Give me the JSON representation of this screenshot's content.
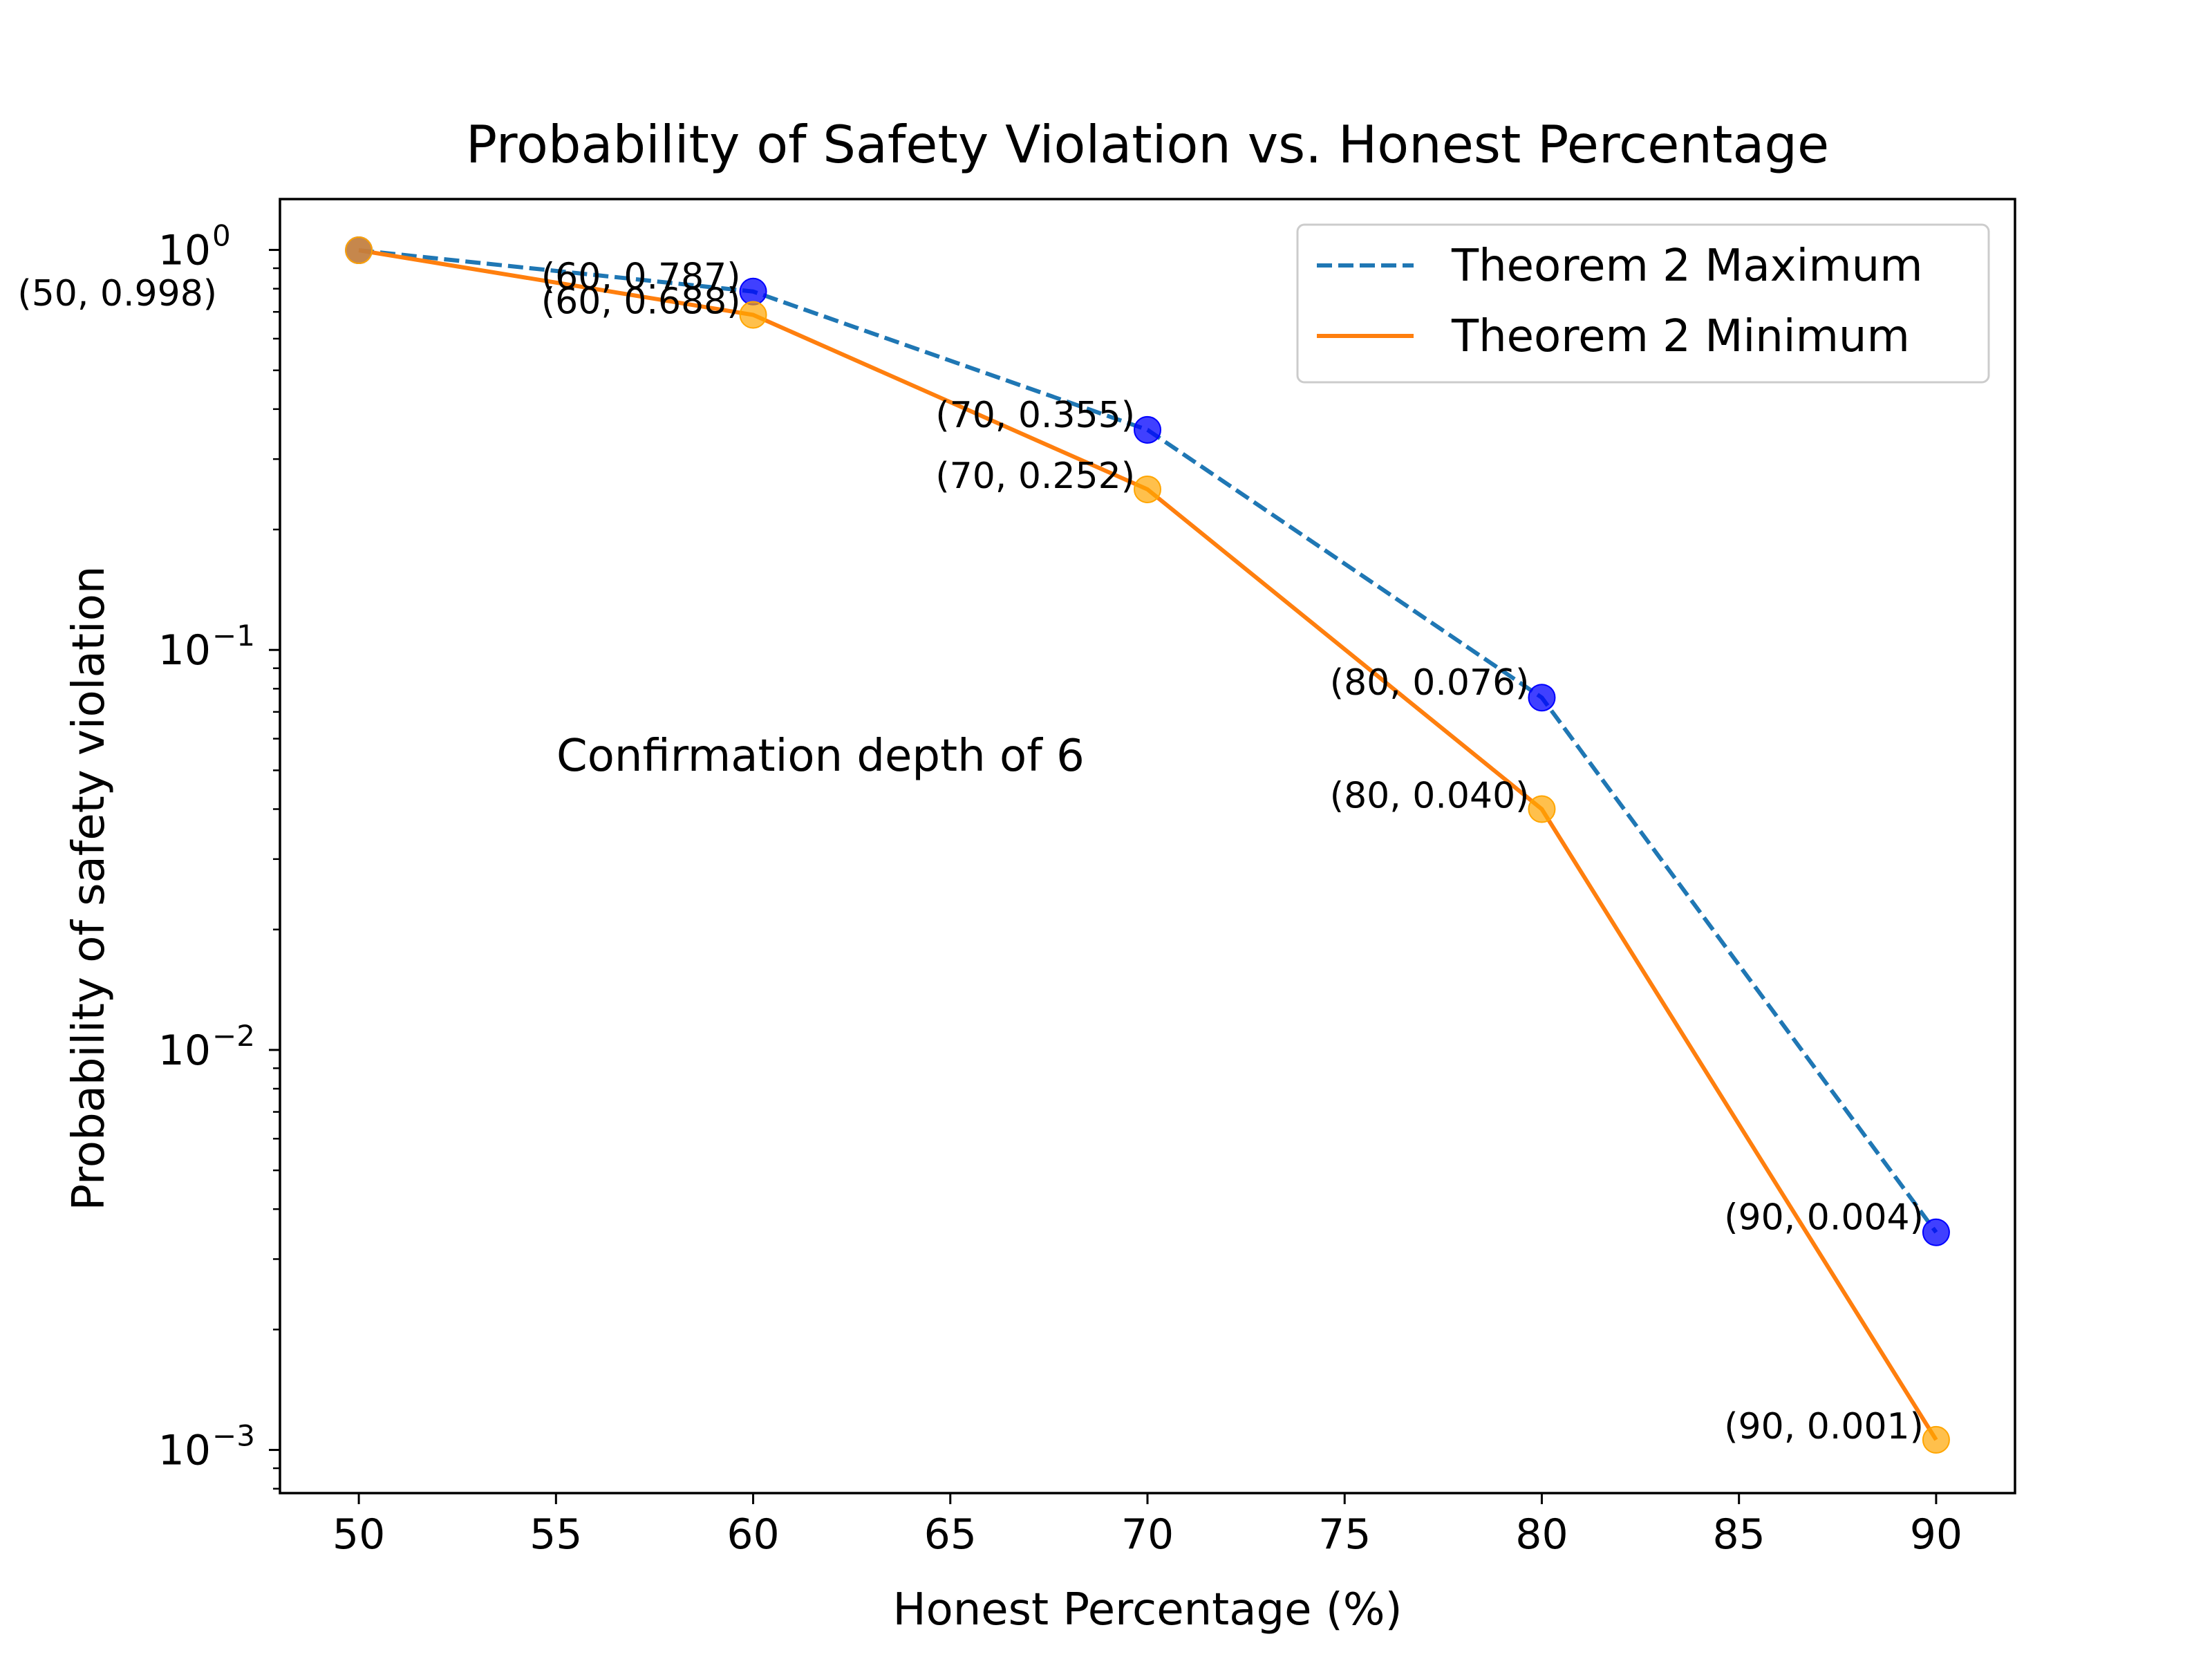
{
  "chart_data": {
    "type": "line",
    "title": "Probability of Safety Violation vs. Honest Percentage",
    "xlabel": "Honest Percentage (%)",
    "ylabel": "Probability of safety violation",
    "xlim": [
      48,
      92
    ],
    "ylim": [
      0.00078,
      1.34
    ],
    "yscale": "log",
    "grid": false,
    "legend_position": "top-right",
    "x": [
      50,
      60,
      70,
      80,
      90
    ],
    "xticks": [
      50,
      55,
      60,
      65,
      70,
      75,
      80,
      85,
      90
    ],
    "yticks": [
      {
        "value": 1,
        "base": "10",
        "exp": "0"
      },
      {
        "value": 0.1,
        "base": "10",
        "exp": "−1"
      },
      {
        "value": 0.01,
        "base": "10",
        "exp": "−2"
      },
      {
        "value": 0.001,
        "base": "10",
        "exp": "−3"
      }
    ],
    "series": [
      {
        "name": "Theorem 2 Maximum",
        "line_style": "dashed",
        "line_color": "#1f77b4",
        "marker_color": "#0000ff",
        "values": [
          0.998,
          0.787,
          0.355,
          0.076,
          0.0035
        ],
        "point_labels": [
          "",
          "(60, 0.787)",
          "(70, 0.355)",
          "(80, 0.076)",
          "(90, 0.004)"
        ]
      },
      {
        "name": "Theorem 2 Minimum",
        "line_style": "solid",
        "line_color": "#ff7f0e",
        "marker_color": "#ffa500",
        "values": [
          0.998,
          0.688,
          0.252,
          0.04,
          0.00106
        ],
        "point_labels": [
          "(50, 0.998)",
          "(60, 0.688)",
          "(70, 0.252)",
          "(80, 0.040)",
          "(90, 0.001)"
        ]
      }
    ],
    "annotation": "Confirmation depth of 6"
  }
}
